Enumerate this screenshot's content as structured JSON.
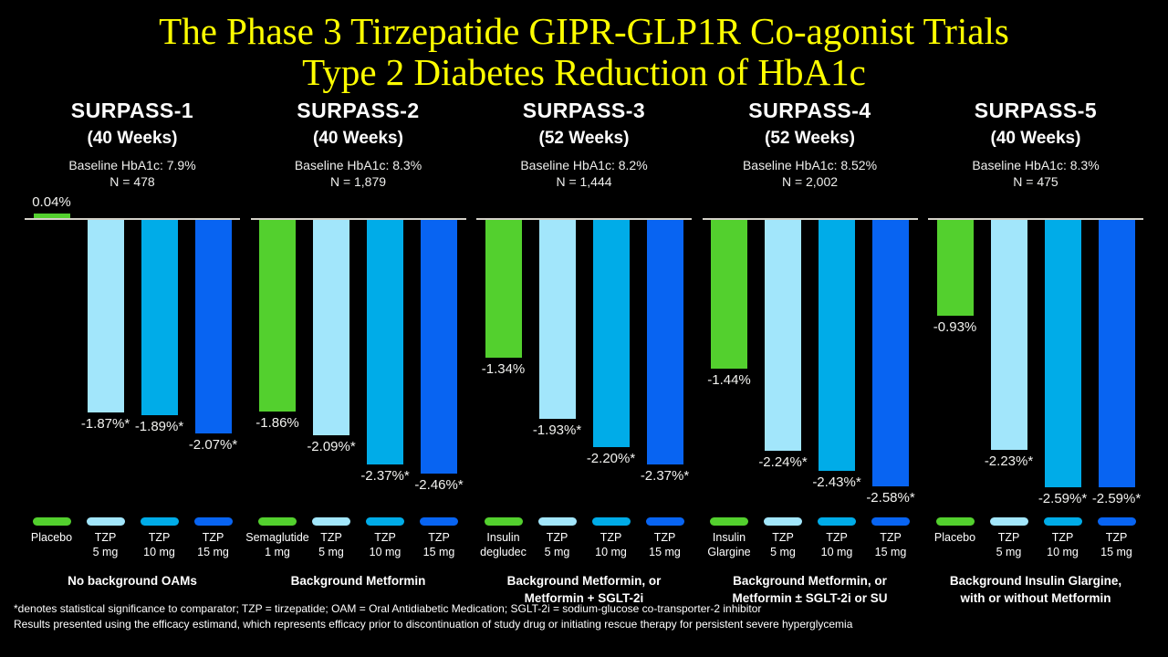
{
  "title": {
    "line1": "The Phase 3 Tirzepatide GIPR-GLP1R Co-agonist Trials",
    "line2": "Type 2 Diabetes Reduction of HbA1c"
  },
  "footnote": {
    "line1": "*denotes statistical significance to comparator; TZP = tirzepatide; OAM = Oral Antidiabetic Medication; SGLT-2i = sodium-glucose co-transporter-2 inhibitor",
    "line2": "Results presented using the efficacy estimand, which represents efficacy prior to discontinuation of study drug or initiating rescue therapy for persistent severe hyperglycemia"
  },
  "colors": {
    "title_yellow": "#FFFF00",
    "green": "#53D02E",
    "tzp5": "#A2E6FB",
    "tzp10": "#00ACE8",
    "tzp15": "#0864F2",
    "baseline_line": "#D4D1C8",
    "text_white": "#FFFFFF",
    "background": "#000000"
  },
  "chart_data": [
    {
      "type": "bar",
      "title": "SURPASS-1",
      "subtitle": "(40 Weeks)",
      "baseline_label": "Baseline HbA1c: 7.9%",
      "n_label": "N = 478",
      "categories": [
        "Placebo",
        "TZP 5 mg",
        "TZP 10 mg",
        "TZP 15 mg"
      ],
      "category_lines": [
        [
          "Placebo"
        ],
        [
          "TZP",
          "5 mg"
        ],
        [
          "TZP",
          "10 mg"
        ],
        [
          "TZP",
          "15 mg"
        ]
      ],
      "values": [
        0.04,
        -1.87,
        -1.89,
        -2.07
      ],
      "value_labels": [
        "0.04%",
        "-1.87%*",
        "-1.89%*",
        "-2.07%*"
      ],
      "bar_colors": [
        "green",
        "tzp5",
        "tzp10",
        "tzp15"
      ],
      "footer_lines": [
        "No background OAMs"
      ],
      "xlabel": "",
      "ylabel": "",
      "ylim": [
        -2.8,
        0.2
      ],
      "grid": false,
      "legend_position": "bottom"
    },
    {
      "type": "bar",
      "title": "SURPASS-2",
      "subtitle": "(40 Weeks)",
      "baseline_label": "Baseline HbA1c: 8.3%",
      "n_label": "N = 1,879",
      "categories": [
        "Semaglutide 1 mg",
        "TZP 5 mg",
        "TZP 10 mg",
        "TZP 15 mg"
      ],
      "category_lines": [
        [
          "Semaglutide",
          "1 mg"
        ],
        [
          "TZP",
          "5 mg"
        ],
        [
          "TZP",
          "10 mg"
        ],
        [
          "TZP",
          "15 mg"
        ]
      ],
      "values": [
        -1.86,
        -2.09,
        -2.37,
        -2.46
      ],
      "value_labels": [
        "-1.86%",
        "-2.09%*",
        "-2.37%*",
        "-2.46%*"
      ],
      "bar_colors": [
        "green",
        "tzp5",
        "tzp10",
        "tzp15"
      ],
      "footer_lines": [
        "Background Metformin"
      ],
      "xlabel": "",
      "ylabel": "",
      "ylim": [
        -2.8,
        0.2
      ],
      "grid": false,
      "legend_position": "bottom"
    },
    {
      "type": "bar",
      "title": "SURPASS-3",
      "subtitle": "(52 Weeks)",
      "baseline_label": "Baseline HbA1c: 8.2%",
      "n_label": "N = 1,444",
      "categories": [
        "Insulin degludec",
        "TZP 5 mg",
        "TZP 10 mg",
        "TZP 15 mg"
      ],
      "category_lines": [
        [
          "Insulin",
          "degludec"
        ],
        [
          "TZP",
          "5 mg"
        ],
        [
          "TZP",
          "10 mg"
        ],
        [
          "TZP",
          "15 mg"
        ]
      ],
      "values": [
        -1.34,
        -1.93,
        -2.2,
        -2.37
      ],
      "value_labels": [
        "-1.34%",
        "-1.93%*",
        "-2.20%*",
        "-2.37%*"
      ],
      "bar_colors": [
        "green",
        "tzp5",
        "tzp10",
        "tzp15"
      ],
      "footer_lines": [
        "Background Metformin, or",
        "Metformin + SGLT-2i"
      ],
      "xlabel": "",
      "ylabel": "",
      "ylim": [
        -2.8,
        0.2
      ],
      "grid": false,
      "legend_position": "bottom"
    },
    {
      "type": "bar",
      "title": "SURPASS-4",
      "subtitle": "(52 Weeks)",
      "baseline_label": "Baseline HbA1c: 8.52%",
      "n_label": "N = 2,002",
      "categories": [
        "Insulin Glargine",
        "TZP 5 mg",
        "TZP 10 mg",
        "TZP 15 mg"
      ],
      "category_lines": [
        [
          "Insulin",
          "Glargine"
        ],
        [
          "TZP",
          "5 mg"
        ],
        [
          "TZP",
          "10 mg"
        ],
        [
          "TZP",
          "15 mg"
        ]
      ],
      "values": [
        -1.44,
        -2.24,
        -2.43,
        -2.58
      ],
      "value_labels": [
        "-1.44%",
        "-2.24%*",
        "-2.43%*",
        "-2.58%*"
      ],
      "bar_colors": [
        "green",
        "tzp5",
        "tzp10",
        "tzp15"
      ],
      "footer_lines": [
        "Background Metformin, or",
        "Metformin ± SGLT-2i or SU"
      ],
      "xlabel": "",
      "ylabel": "",
      "ylim": [
        -2.8,
        0.2
      ],
      "grid": false,
      "legend_position": "bottom"
    },
    {
      "type": "bar",
      "title": "SURPASS-5",
      "subtitle": "(40 Weeks)",
      "baseline_label": "Baseline HbA1c: 8.3%",
      "n_label": "N = 475",
      "categories": [
        "Placebo",
        "TZP 5 mg",
        "TZP 10 mg",
        "TZP 15 mg"
      ],
      "category_lines": [
        [
          "Placebo"
        ],
        [
          "TZP",
          "5 mg"
        ],
        [
          "TZP",
          "10 mg"
        ],
        [
          "TZP",
          "15 mg"
        ]
      ],
      "values": [
        -0.93,
        -2.23,
        -2.59,
        -2.59
      ],
      "value_labels": [
        "-0.93%",
        "-2.23%*",
        "-2.59%*",
        "-2.59%*"
      ],
      "bar_colors": [
        "green",
        "tzp5",
        "tzp10",
        "tzp15"
      ],
      "footer_lines": [
        "Background Insulin Glargine,",
        "with or without Metformin"
      ],
      "xlabel": "",
      "ylabel": "",
      "ylim": [
        -2.8,
        0.2
      ],
      "grid": false,
      "legend_position": "bottom"
    }
  ]
}
